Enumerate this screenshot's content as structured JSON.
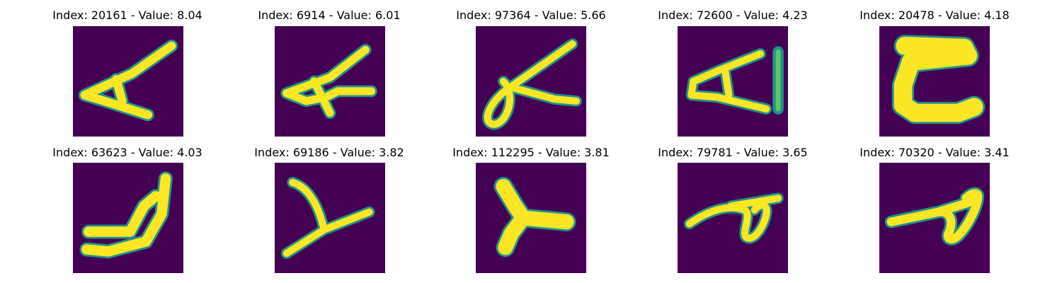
{
  "panels": [
    {
      "title": "Index: 20161 - Value: 8.04",
      "glyph": "letter-a-tilted"
    },
    {
      "title": "Index: 6914 - Value: 6.01",
      "glyph": "letter-a-tilted"
    },
    {
      "title": "Index: 97364 - Value: 5.66",
      "glyph": "letter-a-loop"
    },
    {
      "title": "Index: 72600 - Value: 4.23",
      "glyph": "letter-a-with-bar"
    },
    {
      "title": "Index: 20478 - Value: 4.18",
      "glyph": "blob-e-shape"
    },
    {
      "title": "Index: 63623 - Value: 4.03",
      "glyph": "letter-a-rotated"
    },
    {
      "title": "Index: 69186 - Value: 3.82",
      "glyph": "letter-y-shape"
    },
    {
      "title": "Index: 112295 - Value: 3.81",
      "glyph": "letter-y-thick"
    },
    {
      "title": "Index: 79781 - Value: 3.65",
      "glyph": "letter-a-cursive"
    },
    {
      "title": "Index: 70320 - Value: 3.41",
      "glyph": "letter-a-cursive"
    }
  ],
  "colors": {
    "background": "#440154",
    "stroke": "#fde725",
    "edge": "#21918c",
    "edge_dark": "#3b528b"
  }
}
